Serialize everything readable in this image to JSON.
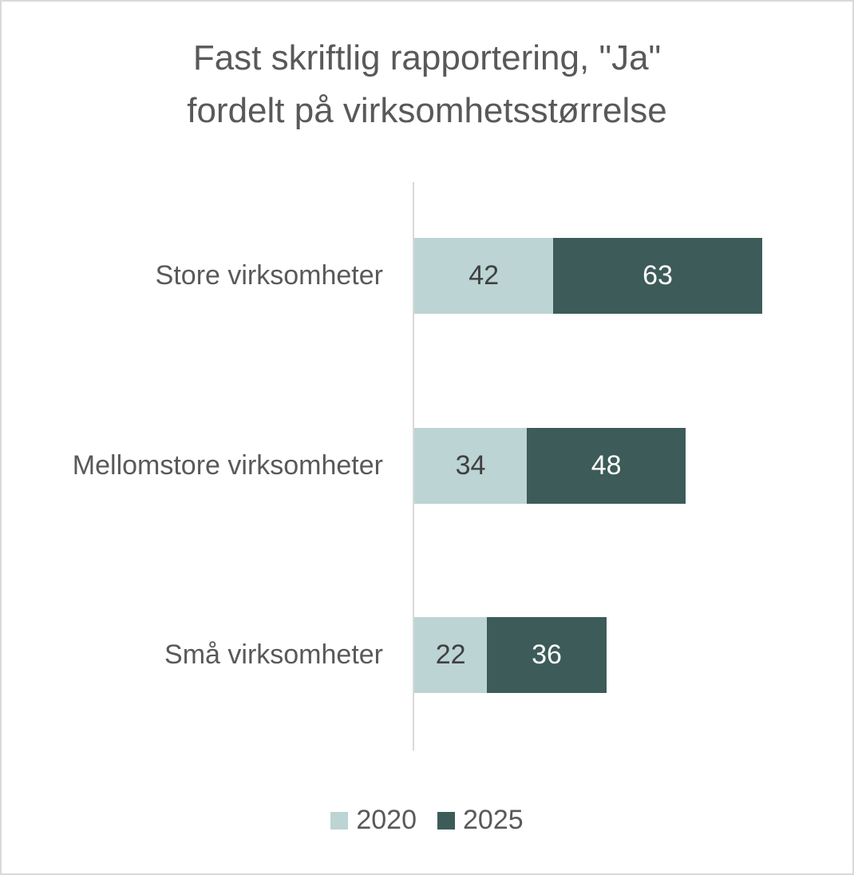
{
  "chart_data": {
    "type": "bar",
    "orientation": "horizontal",
    "stacked": true,
    "title": "Fast skriftlig rapportering, \"Ja\" fordelt på virksomhetsstørrelse",
    "title_lines": [
      "Fast skriftlig rapportering, \"Ja\"",
      "fordelt på virksomhetsstørrelse"
    ],
    "categories": [
      "Store virksomheter",
      "Mellomstore virksomheter",
      "Små virksomheter"
    ],
    "series": [
      {
        "name": "2020",
        "color": "#bcd4d3",
        "values": [
          42,
          34,
          22
        ]
      },
      {
        "name": "2025",
        "color": "#3d5b58",
        "values": [
          63,
          48,
          36
        ]
      }
    ],
    "xlabel": "",
    "ylabel": "",
    "grid": false,
    "legend_position": "bottom",
    "data_labels": true
  }
}
